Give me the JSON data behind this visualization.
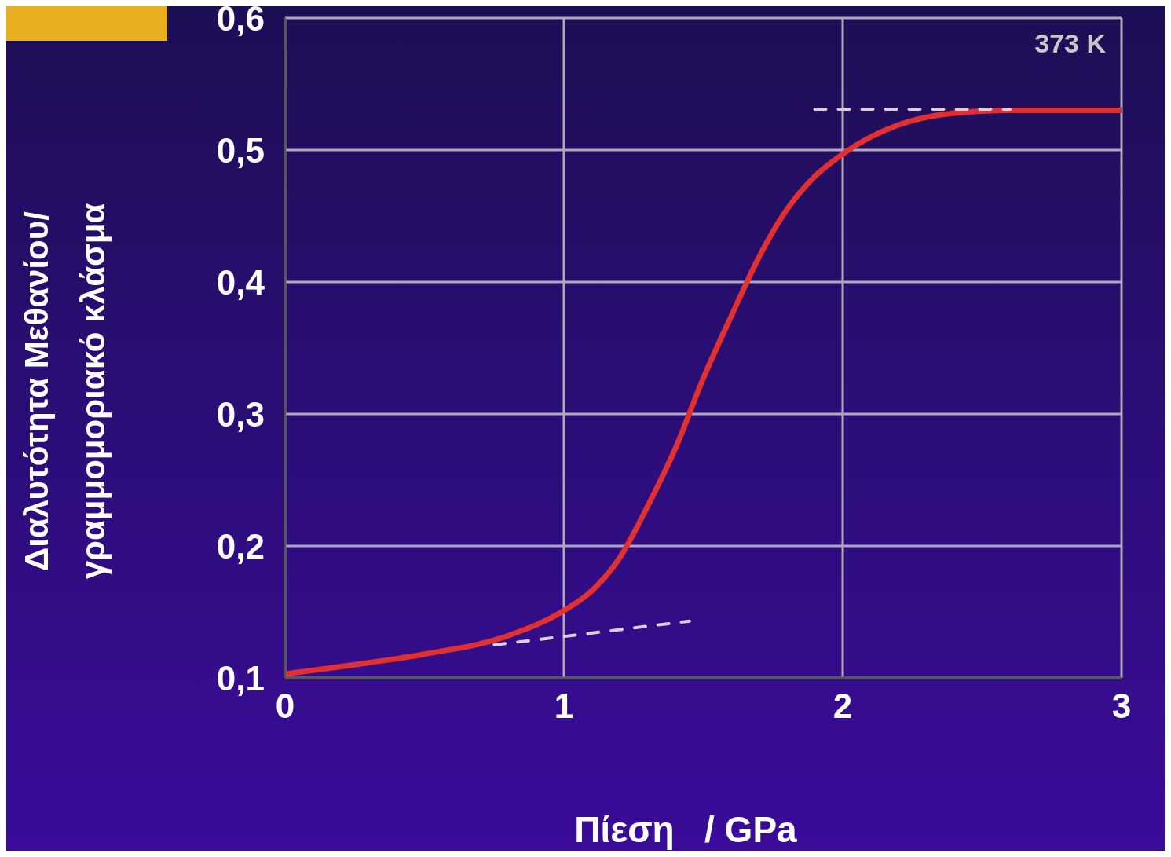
{
  "chart_data": {
    "type": "line",
    "xlabel": "Πίεση   / GPa",
    "ylabel": "Διαλυτότητα Μεθανίου/\nγραμμομοριακό κλάσμα",
    "annotations": [
      "373 K"
    ],
    "xlim": [
      0,
      3
    ],
    "xticks": [
      0,
      1,
      2,
      3
    ],
    "ylim": [
      0.1,
      0.6
    ],
    "yticks": [
      {
        "value": 0.1,
        "label": "0,1"
      },
      {
        "value": 0.2,
        "label": "0,2"
      },
      {
        "value": 0.3,
        "label": "0,3"
      },
      {
        "value": 0.4,
        "label": "0,4"
      },
      {
        "value": 0.5,
        "label": "0,5"
      },
      {
        "value": 0.6,
        "label": "0,6"
      }
    ],
    "grid": true,
    "marker": "none",
    "series": [
      {
        "color": "#e03030",
        "line_style": "solid",
        "x": [
          0,
          0.25,
          0.5,
          0.8,
          1.0,
          1.1,
          1.2,
          1.3,
          1.4,
          1.5,
          1.6,
          1.7,
          1.8,
          1.9,
          2.0,
          2.2,
          2.4,
          2.6,
          3.0
        ],
        "values": [
          0.103,
          0.11,
          0.118,
          0.132,
          0.151,
          0.166,
          0.191,
          0.23,
          0.274,
          0.327,
          0.374,
          0.419,
          0.455,
          0.48,
          0.497,
          0.519,
          0.528,
          0.53,
          0.53
        ]
      },
      {
        "color": "#d8d0d8",
        "line_style": "dashed",
        "x": [
          0.75,
          1.45
        ],
        "values": [
          0.125,
          0.143
        ]
      },
      {
        "color": "#d8d0d8",
        "line_style": "dashed",
        "x": [
          1.9,
          2.6
        ],
        "values": [
          0.531,
          0.531
        ]
      }
    ]
  }
}
